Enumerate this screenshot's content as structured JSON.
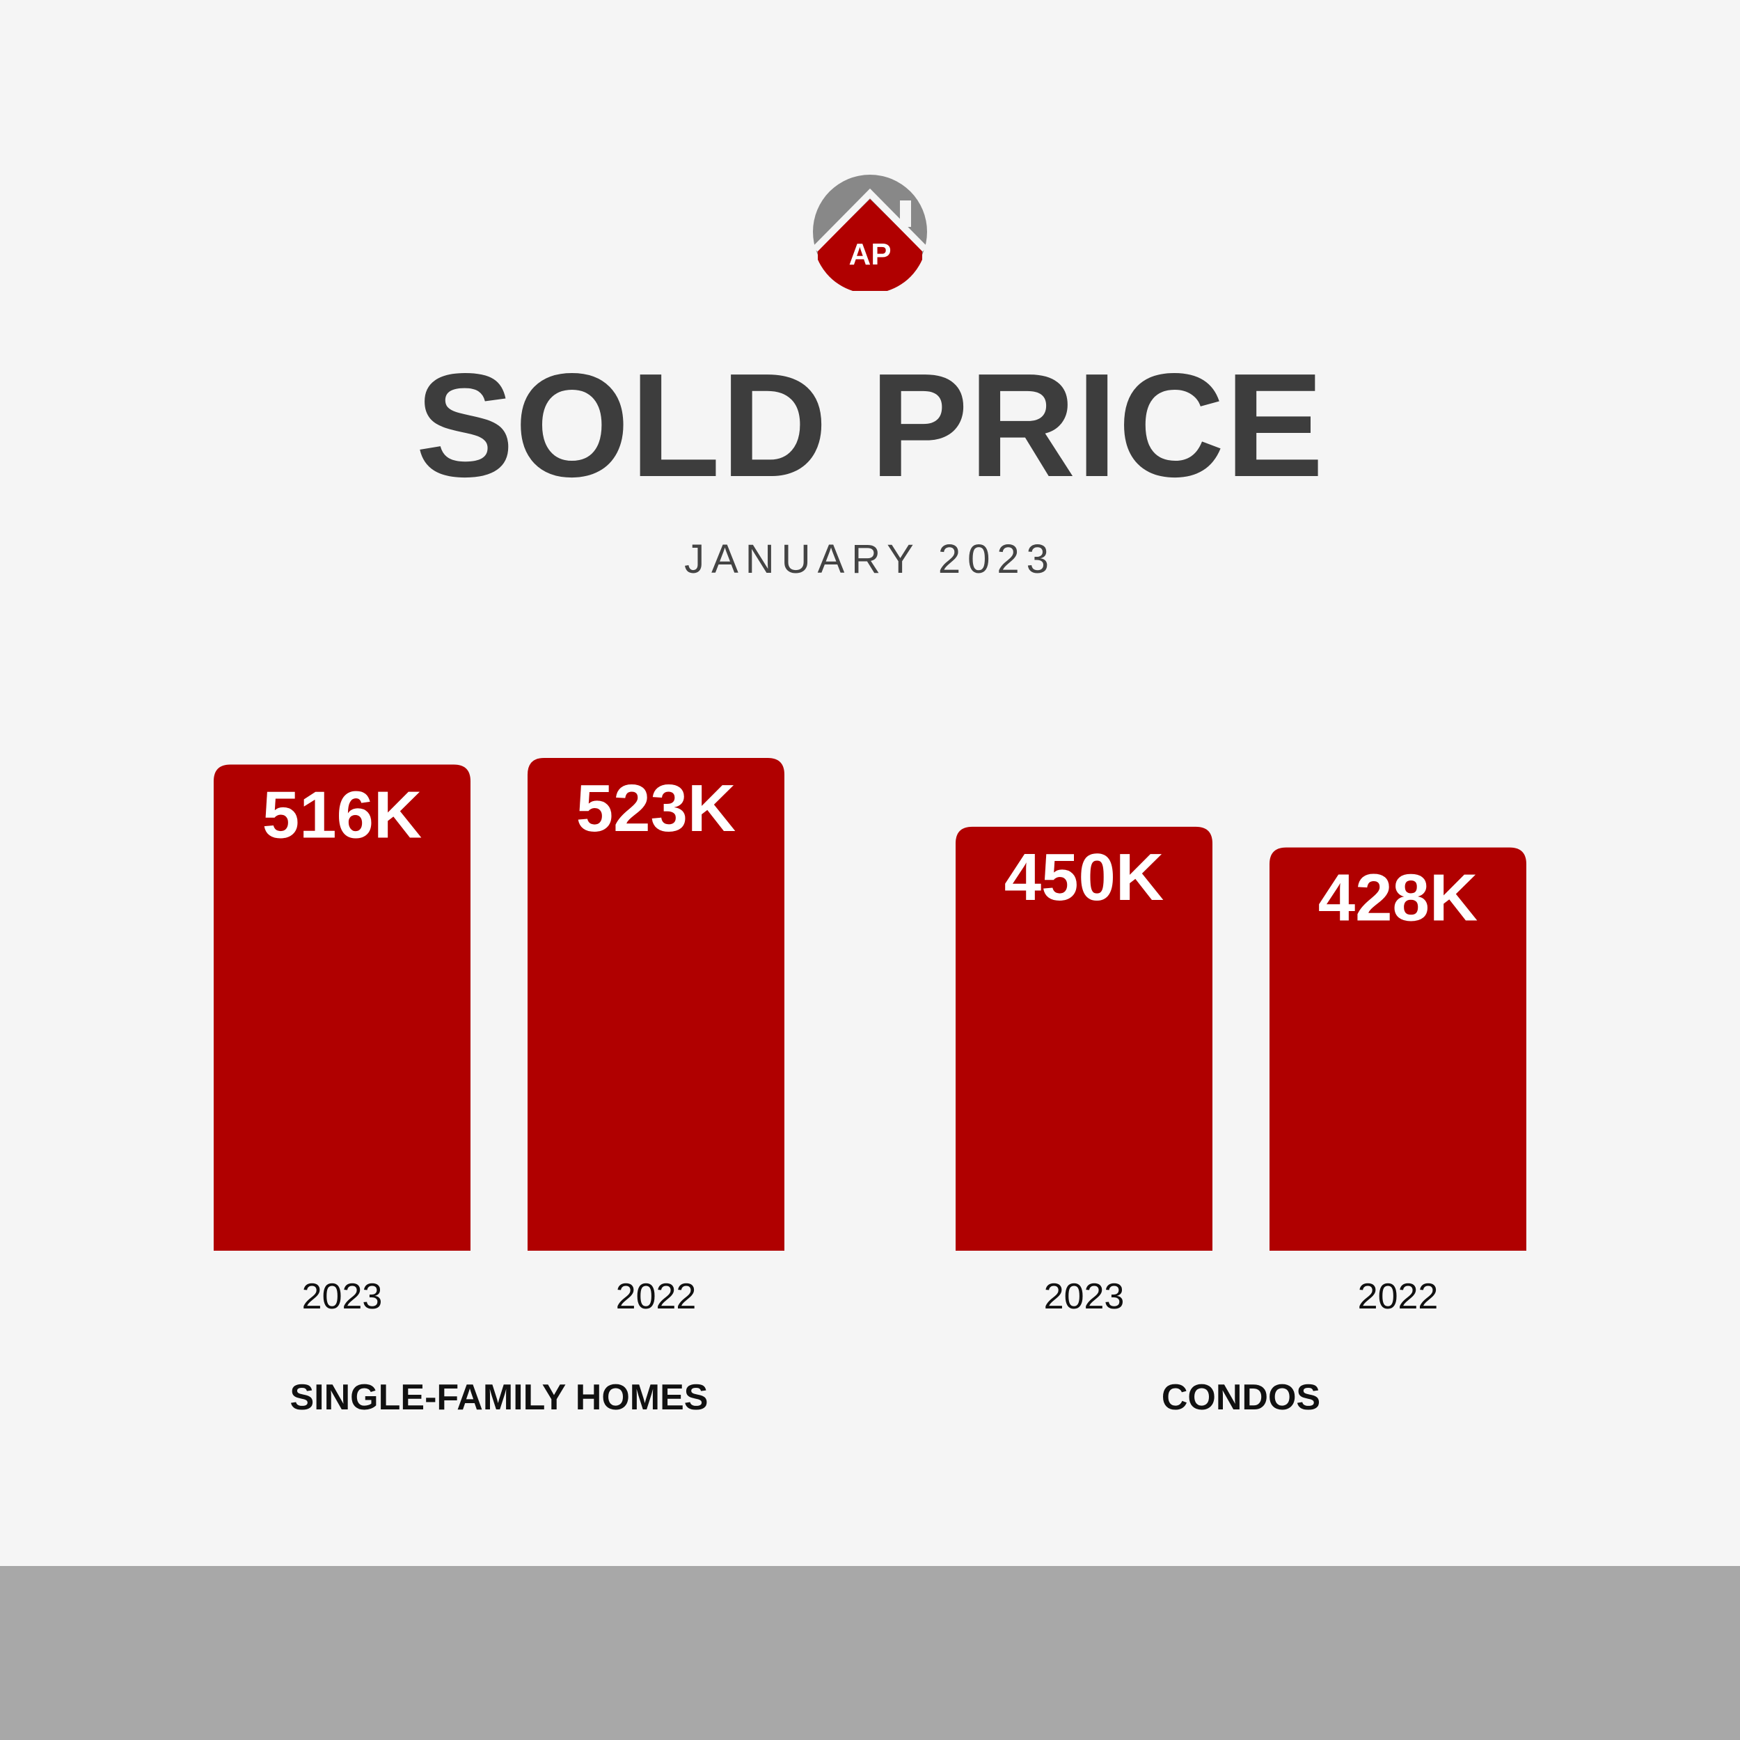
{
  "logo": {
    "text": "AP",
    "colors": {
      "roof": "#888888",
      "base": "#b00000",
      "text": "#ffffff"
    }
  },
  "title": "SOLD PRICE",
  "subtitle": "JANUARY 2023",
  "chart_data": {
    "type": "bar",
    "bar_color": "#b00000",
    "label_color": "#ffffff",
    "groups": [
      {
        "name": "SINGLE-FAMILY HOMES",
        "bars": [
          {
            "category": "2023",
            "value": 516,
            "label": "516K"
          },
          {
            "category": "2022",
            "value": 523,
            "label": "523K"
          }
        ]
      },
      {
        "name": "CONDOS",
        "bars": [
          {
            "category": "2023",
            "value": 450,
            "label": "450K"
          },
          {
            "category": "2022",
            "value": 428,
            "label": "428K"
          }
        ]
      }
    ]
  },
  "colors": {
    "background": "#f5f5f5",
    "title": "#3d3d3d",
    "footer_band": "#a8a8a8"
  }
}
